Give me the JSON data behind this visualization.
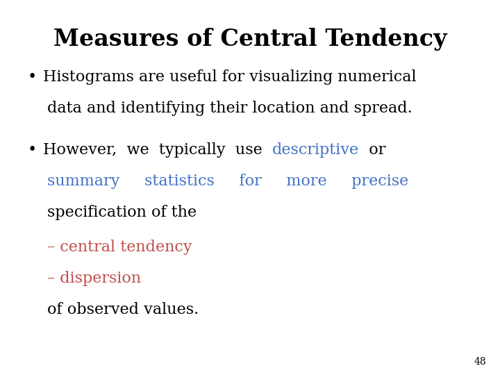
{
  "title": "Measures of Central Tendency",
  "title_fontsize": 24,
  "title_fontweight": "bold",
  "background_color": "#ffffff",
  "text_color": "#000000",
  "blue_color": "#4472C4",
  "orange_color": "#C0504D",
  "page_number": "48",
  "bullet1_line1": "Histograms are useful for visualizing numerical",
  "bullet1_line2": "data and identifying their location and spread.",
  "bullet2_b2_pre": "However,  we  typically  use  ",
  "bullet2_descriptive": "descriptive",
  "bullet2_or": "  or",
  "bullet2_line2": "summary     statistics     for     more     precise",
  "bullet2_line3": "specification of the",
  "dash1": "– central tendency",
  "dash2": "– dispersion",
  "final_line": "of observed values.",
  "body_fontsize": 16,
  "page_num_fontsize": 10,
  "fig_width": 7.2,
  "fig_height": 5.4,
  "dpi": 100
}
